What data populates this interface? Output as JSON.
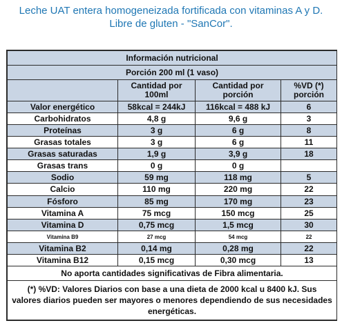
{
  "caption": {
    "line1": "Leche UAT entera homogeneizada fortificada con vitaminas A y D.",
    "line2": "Libre de gluten - \"SanCor\"."
  },
  "table": {
    "title": "Información nutricional",
    "portion": "Porción 200 ml (1 vaso)",
    "columns": [
      "",
      "Cantidad por 100ml",
      "Cantidad por porción",
      "%VD (*) porción"
    ],
    "rows": [
      {
        "name": "Valor energético",
        "per100": "58kcal = 244kJ",
        "perPortion": "116kcal = 488 kJ",
        "vd": "6"
      },
      {
        "name": "Carbohidratos",
        "per100": "4,8 g",
        "perPortion": "9,6 g",
        "vd": "3"
      },
      {
        "name": "Proteínas",
        "per100": "3 g",
        "perPortion": "6 g",
        "vd": "8"
      },
      {
        "name": "Grasas totales",
        "per100": "3 g",
        "perPortion": "6 g",
        "vd": "11"
      },
      {
        "name": "Grasas saturadas",
        "per100": "1,9 g",
        "perPortion": "3,9 g",
        "vd": "18"
      },
      {
        "name": "Grasas trans",
        "per100": "0 g",
        "perPortion": "0 g",
        "vd": ""
      },
      {
        "name": "Sodio",
        "per100": "59 mg",
        "perPortion": "118 mg",
        "vd": "5"
      },
      {
        "name": "Calcio",
        "per100": "110 mg",
        "perPortion": "220 mg",
        "vd": "22"
      },
      {
        "name": "Fósforo",
        "per100": "85 mg",
        "perPortion": "170 mg",
        "vd": "23"
      },
      {
        "name": "Vitamina A",
        "per100": "75 mcg",
        "perPortion": "150 mcg",
        "vd": "25"
      },
      {
        "name": "Vitamina D",
        "per100": "0,75 mcg",
        "perPortion": "1,5 mcg",
        "vd": "30"
      },
      {
        "name": "Vitamina B9",
        "per100": "27 mcg",
        "perPortion": "54 mcg",
        "vd": "22"
      },
      {
        "name": "Vitamina B2",
        "per100": "0,14 mg",
        "perPortion": "0,28 mg",
        "vd": "22"
      },
      {
        "name": "Vitamina B12",
        "per100": "0,15 mcg",
        "perPortion": "0,30 mcg",
        "vd": "13"
      }
    ],
    "note": "No aporta cantidades significativas de Fibra alimentaria.",
    "footnote": "(*) %VD: Valores Diarios con base a una dieta de 2000 kcal u 8400 kJ. Sus valores diarios pueden ser mayores o menores dependiendo de sus necesidades energéticas."
  },
  "colors": {
    "caption": "#1f77b4",
    "header_bg": "#c9d5e4",
    "border": "#2a2a2a"
  }
}
